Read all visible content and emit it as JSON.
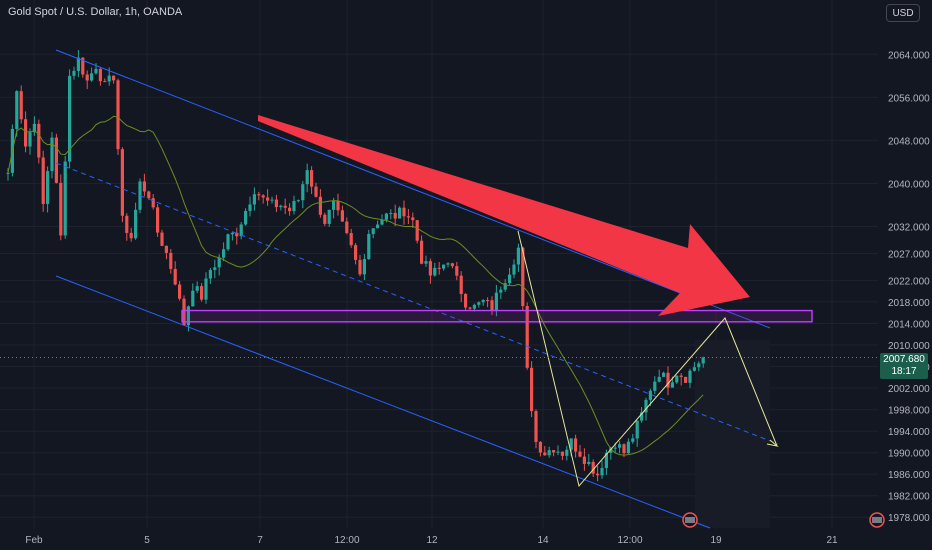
{
  "header": {
    "title": "Gold Spot / U.S. Dollar, 1h, OANDA",
    "currency": "USD"
  },
  "last_price": {
    "value": "2007.680",
    "countdown": "18:17"
  },
  "colors": {
    "background": "#131722",
    "up": "#26a69a",
    "down": "#ef5350",
    "arrow": "#f23645",
    "channel": "#2962ff",
    "zone": "#9c27b0",
    "ma": "#6b8e23",
    "projection": "#e6e699"
  },
  "chart_data": {
    "type": "candlestick",
    "title": "Gold Spot / U.S. Dollar, 1h, OANDA",
    "ylim": [
      1976,
      2070
    ],
    "y_ticks": [
      1978.0,
      1982.0,
      1986.0,
      1990.0,
      1994.0,
      1998.0,
      2002.0,
      2006.0,
      2010.0,
      2014.0,
      2018.0,
      2022.0,
      2027.0,
      2032.0,
      2040.0,
      2048.0,
      2056.0,
      2064.0
    ],
    "y_tick_labels": [
      "1978.000",
      "1982.000",
      "1986.000",
      "1990.000",
      "1994.000",
      "1998.000",
      "2002.000",
      "2006.000",
      "2010.000",
      "2014.000",
      "2018.000",
      "2022.000",
      "2027.000",
      "2032.000",
      "2040.000",
      "2048.000",
      "2056.000",
      "2064.000"
    ],
    "x_tick_labels": [
      "Feb",
      "5",
      "7",
      "12:00",
      "12",
      "14",
      "12:00",
      "19",
      "21"
    ],
    "close_path": [
      [
        0,
        2042
      ],
      [
        2,
        2058
      ],
      [
        4,
        2047
      ],
      [
        6,
        2052
      ],
      [
        8,
        2036
      ],
      [
        10,
        2049
      ],
      [
        12,
        2030
      ],
      [
        14,
        2060
      ],
      [
        16,
        2063
      ],
      [
        18,
        2059
      ],
      [
        20,
        2062
      ],
      [
        22,
        2058
      ],
      [
        24,
        2060
      ],
      [
        26,
        2033
      ],
      [
        28,
        2030
      ],
      [
        30,
        2040
      ],
      [
        32,
        2038
      ],
      [
        34,
        2031
      ],
      [
        36,
        2027
      ],
      [
        38,
        2022
      ],
      [
        40,
        2014
      ],
      [
        42,
        2021
      ],
      [
        44,
        2019
      ],
      [
        46,
        2024
      ],
      [
        48,
        2026
      ],
      [
        50,
        2030
      ],
      [
        52,
        2031
      ],
      [
        54,
        2035
      ],
      [
        56,
        2039
      ],
      [
        58,
        2037
      ],
      [
        60,
        2036
      ],
      [
        62,
        2036
      ],
      [
        64,
        2035
      ],
      [
        66,
        2037
      ],
      [
        68,
        2043
      ],
      [
        70,
        2037
      ],
      [
        72,
        2033
      ],
      [
        74,
        2036
      ],
      [
        76,
        2032
      ],
      [
        78,
        2028
      ],
      [
        80,
        2023
      ],
      [
        82,
        2031
      ],
      [
        84,
        2033
      ],
      [
        86,
        2034
      ],
      [
        88,
        2034
      ],
      [
        90,
        2035
      ],
      [
        92,
        2033
      ],
      [
        94,
        2026
      ],
      [
        96,
        2023
      ],
      [
        98,
        2024
      ],
      [
        100,
        2026
      ],
      [
        102,
        2022
      ],
      [
        104,
        2018
      ],
      [
        106,
        2017
      ],
      [
        108,
        2018
      ],
      [
        110,
        2017
      ],
      [
        112,
        2021
      ],
      [
        114,
        2024
      ],
      [
        116,
        2028
      ],
      [
        118,
        2005
      ],
      [
        120,
        1992
      ],
      [
        122,
        1990
      ],
      [
        124,
        1991
      ],
      [
        126,
        1990
      ],
      [
        128,
        1992
      ],
      [
        130,
        1990
      ],
      [
        132,
        1988
      ],
      [
        134,
        1986
      ],
      [
        136,
        1990
      ],
      [
        138,
        1992
      ],
      [
        140,
        1990
      ],
      [
        142,
        1993
      ],
      [
        144,
        1997
      ],
      [
        146,
        2002
      ],
      [
        148,
        2005
      ],
      [
        150,
        2003
      ],
      [
        152,
        2005
      ],
      [
        154,
        2004
      ],
      [
        156,
        2006
      ],
      [
        158,
        2007.68
      ]
    ],
    "support_zone": {
      "low": 2014.3,
      "high": 2016.4
    },
    "current_price": 2007.68
  }
}
